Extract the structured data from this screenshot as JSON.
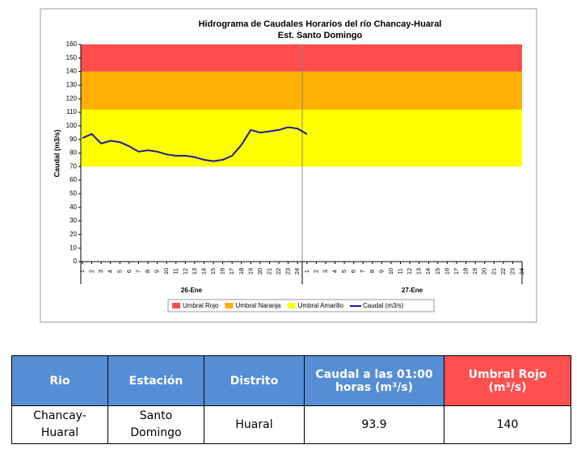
{
  "chart_data": {
    "type": "line",
    "title": "Hidrograma de Caudales Horarios del río Chancay-Huaral",
    "subtitle": "Est. Santo Domingo",
    "y_label": "Caudal  (m3/s)",
    "categories": [
      "1",
      "2",
      "3",
      "4",
      "5",
      "6",
      "7",
      "8",
      "9",
      "10",
      "11",
      "12",
      "13",
      "14",
      "15",
      "16",
      "17",
      "18",
      "19",
      "20",
      "21",
      "22",
      "23",
      "24",
      "1",
      "2",
      "3",
      "4",
      "5",
      "6",
      "7",
      "8",
      "9",
      "10",
      "11",
      "12",
      "13",
      "14",
      "15",
      "16",
      "17",
      "18",
      "19",
      "20",
      "21",
      "22",
      "23",
      "24"
    ],
    "groups": [
      "26-Ene",
      "27-Ene"
    ],
    "thresholds": [
      {
        "name": "Umbral Rojo",
        "color": "#ff4d4d",
        "value": 140
      },
      {
        "name": "Umbral Naranja",
        "color": "#ffb000",
        "value": 112
      },
      {
        "name": "Umbral Amarillo",
        "color": "#ffff00",
        "value": 70
      }
    ],
    "series": [
      {
        "name": "Caudal (m3/s)",
        "color": "#1a1aa0",
        "values": [
          91,
          94,
          87,
          89,
          88,
          85,
          81,
          82,
          81,
          79,
          78,
          78,
          77,
          75,
          74,
          75,
          78,
          86,
          97,
          95,
          96,
          97,
          99,
          98,
          93.9,
          null,
          null,
          null,
          null,
          null,
          null,
          null,
          null,
          null,
          null,
          null,
          null,
          null,
          null,
          null,
          null,
          null,
          null,
          null,
          null,
          null,
          null,
          null
        ]
      }
    ],
    "ylim": [
      0,
      160
    ],
    "yticks": [
      0,
      10,
      20,
      30,
      40,
      50,
      60,
      70,
      80,
      90,
      100,
      110,
      120,
      130,
      140,
      150,
      160
    ]
  },
  "table": {
    "header": [
      "Rio",
      "Estación",
      "Distrito",
      "Caudal a las 01:00 horas (m³/s)",
      "Umbral Rojo (m³/s)"
    ],
    "rows": [
      [
        "Chancay-Huaral",
        "Santo Domingo",
        "Huaral",
        93.9,
        140
      ]
    ]
  }
}
